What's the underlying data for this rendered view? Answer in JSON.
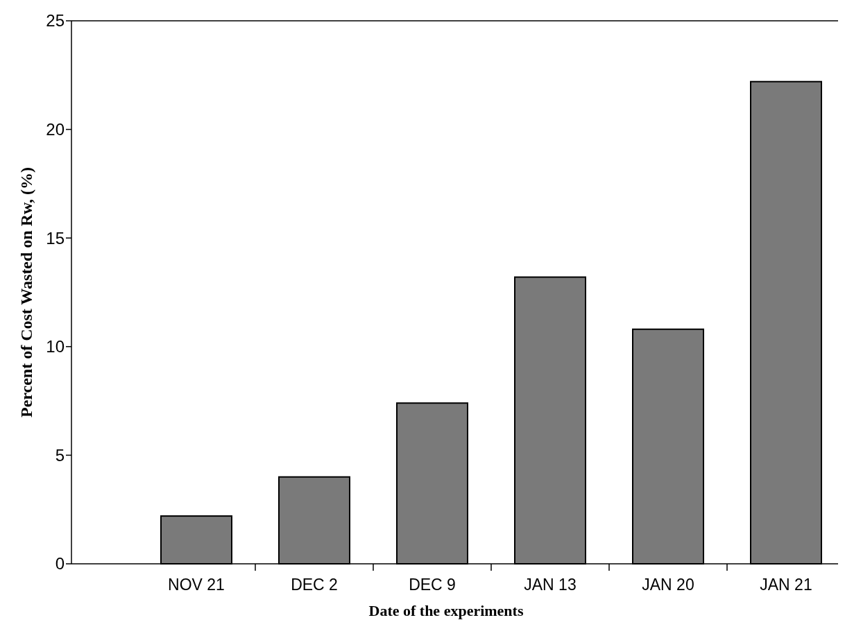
{
  "chart_data": {
    "type": "bar",
    "xlabel": "Date of the experiments",
    "ylabel": "Percent of Cost Wasted on Rw, (%)",
    "categories": [
      "NOV 21",
      "DEC 2",
      "DEC 9",
      "JAN 13",
      "JAN 20",
      "JAN 21"
    ],
    "values": [
      2.2,
      4.0,
      7.4,
      13.2,
      10.8,
      22.2
    ],
    "color": "#7a7a7a",
    "ylim": [
      0,
      25
    ],
    "yticks": [
      0,
      5,
      10,
      15,
      20,
      25
    ],
    "grid": false
  }
}
